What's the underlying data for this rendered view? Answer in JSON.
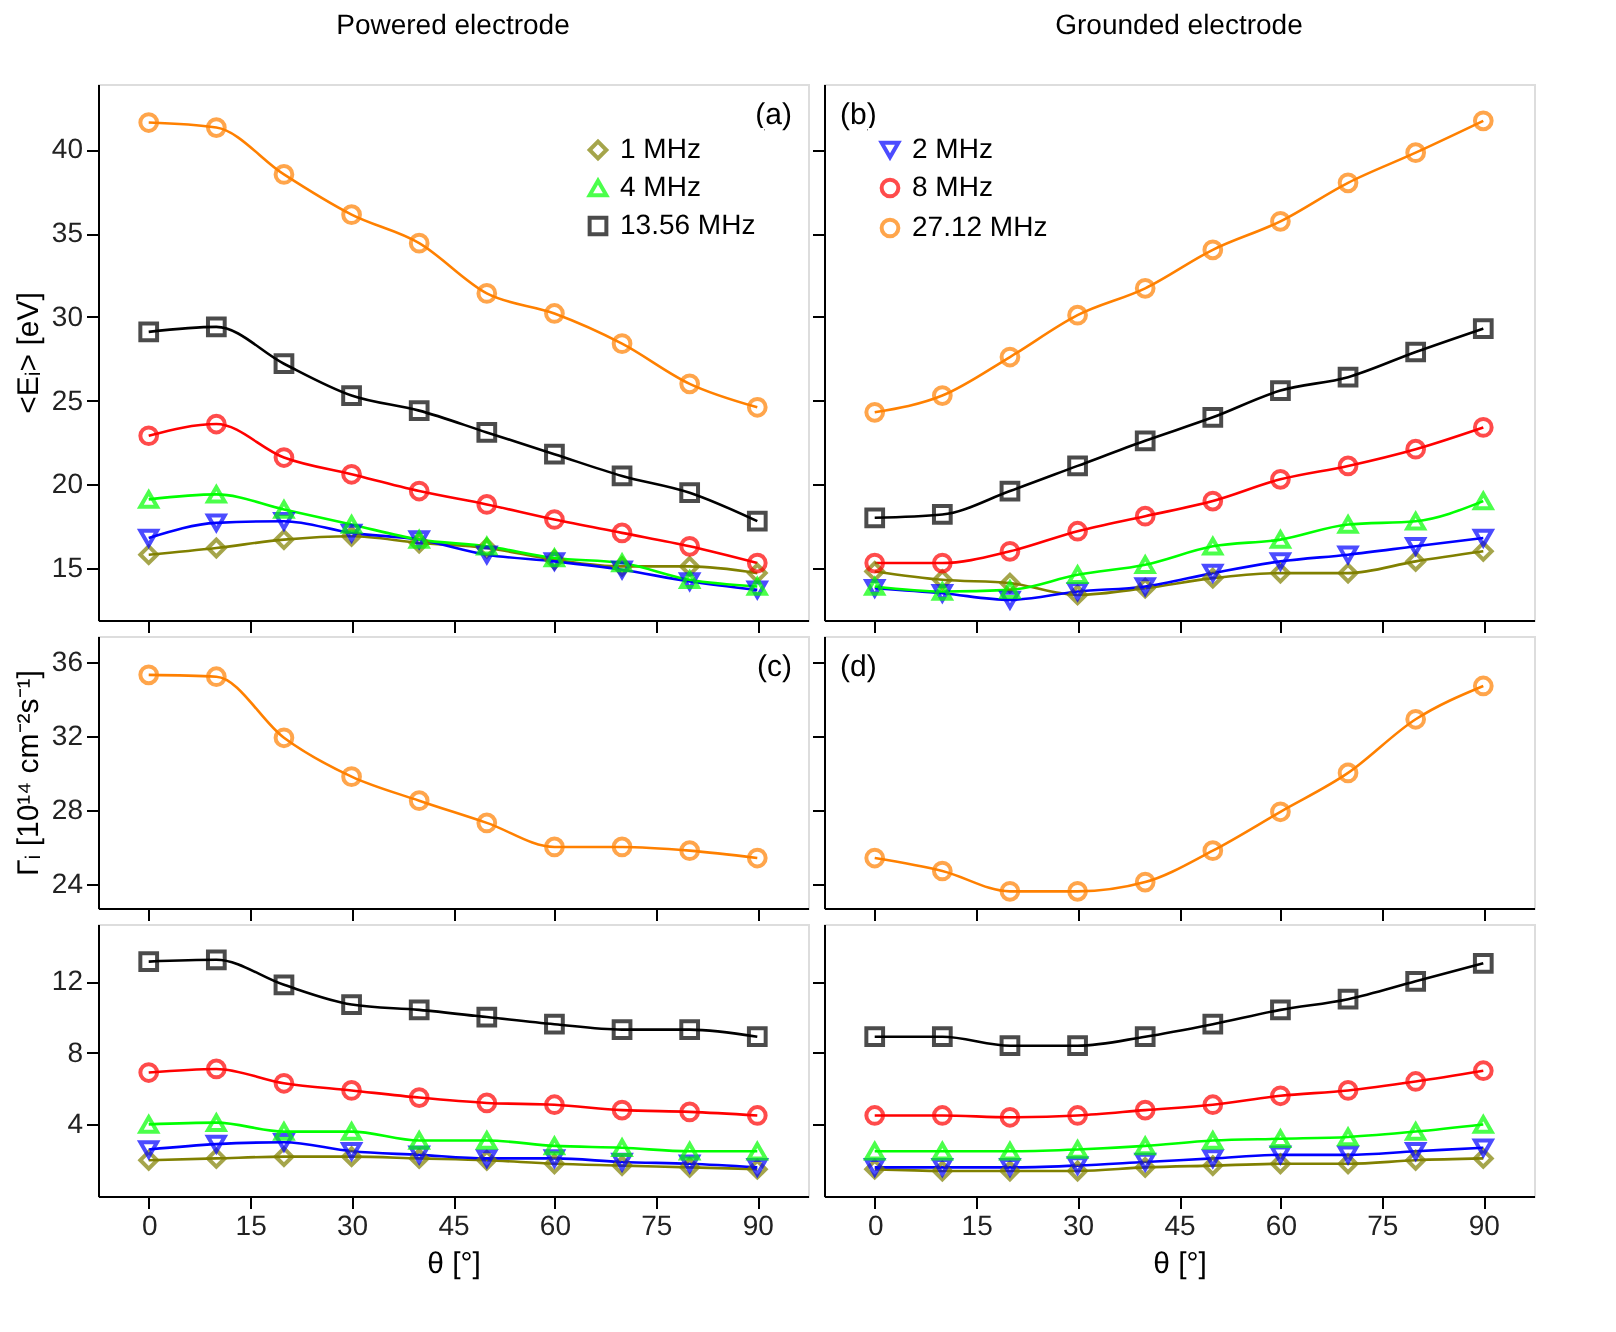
{
  "chart_data": [
    {
      "type": "line",
      "title": "Powered electrode",
      "ylabel": "<Eᵢ> [eV]",
      "annotations": [
        "(a)"
      ],
      "x": [
        0,
        10,
        20,
        30,
        40,
        50,
        60,
        70,
        80,
        90
      ],
      "xlim": [
        -7.5,
        97.5
      ],
      "xticks": [
        0,
        15,
        30,
        45,
        60,
        75,
        90
      ],
      "ylim": [
        11.9,
        43.9
      ],
      "yticks": [
        15,
        20,
        25,
        30,
        35,
        40
      ],
      "tick_labels": "y",
      "legend": "top right",
      "series": [
        {
          "name": "1 MHz",
          "color": "#808000",
          "marker": "diamond",
          "values": [
            15.8,
            16.2,
            16.7,
            16.9,
            16.5,
            16.2,
            15.5,
            15.1,
            15.1,
            14.7
          ]
        },
        {
          "color": "#0000ff",
          "marker": "triangle-down",
          "values": [
            16.8,
            17.7,
            17.8,
            17.1,
            16.7,
            15.8,
            15.4,
            14.9,
            14.2,
            13.7
          ]
        },
        {
          "name": "4 MHz",
          "color": "#00ff00",
          "marker": "triangle",
          "values": [
            19.1,
            19.4,
            18.5,
            17.6,
            16.7,
            16.3,
            15.6,
            15.3,
            14.3,
            13.9
          ]
        },
        {
          "color": "#ff0000",
          "marker": "circle",
          "values": [
            22.9,
            23.6,
            21.6,
            20.6,
            19.6,
            18.8,
            17.9,
            17.1,
            16.3,
            15.3
          ]
        },
        {
          "name": "13.56 MHz",
          "color": "#000000",
          "marker": "square",
          "values": [
            29.1,
            29.4,
            27.2,
            25.3,
            24.4,
            23.1,
            21.8,
            20.5,
            19.5,
            17.8
          ]
        },
        {
          "color": "#ff8000",
          "marker": "circle",
          "values": [
            41.6,
            41.3,
            38.5,
            36.1,
            34.4,
            31.4,
            30.2,
            28.4,
            26.0,
            24.6
          ]
        }
      ]
    },
    {
      "type": "line",
      "title": "Grounded electrode",
      "annotations": [
        "(b)"
      ],
      "x": [
        0,
        10,
        20,
        30,
        40,
        50,
        60,
        70,
        80,
        90
      ],
      "xlim": [
        -7.5,
        97.5
      ],
      "xticks": [
        0,
        15,
        30,
        45,
        60,
        75,
        90
      ],
      "ylim": [
        11.9,
        43.9
      ],
      "yticks": [
        15,
        20,
        25,
        30,
        35,
        40
      ],
      "tick_labels": false,
      "legend": "top left",
      "series": [
        {
          "color": "#808000",
          "marker": "diamond",
          "values": [
            14.8,
            14.3,
            14.1,
            13.4,
            13.8,
            14.4,
            14.7,
            14.7,
            15.4,
            16.0
          ]
        },
        {
          "name": "2 MHz",
          "color": "#0000ff",
          "marker": "triangle-down",
          "values": [
            13.8,
            13.5,
            13.1,
            13.6,
            13.9,
            14.7,
            15.4,
            15.8,
            16.3,
            16.8
          ]
        },
        {
          "color": "#00ff00",
          "marker": "triangle",
          "values": [
            13.9,
            13.6,
            13.7,
            14.6,
            15.2,
            16.3,
            16.7,
            17.6,
            17.8,
            19.0
          ]
        },
        {
          "name": "8 MHz",
          "color": "#ff0000",
          "marker": "circle",
          "values": [
            15.3,
            15.3,
            16.0,
            17.2,
            18.1,
            19.0,
            20.3,
            21.1,
            22.1,
            23.4
          ]
        },
        {
          "color": "#000000",
          "marker": "square",
          "values": [
            18.0,
            18.2,
            19.6,
            21.1,
            22.6,
            24.0,
            25.6,
            26.4,
            27.9,
            29.3
          ]
        },
        {
          "name": "27.12 MHz",
          "color": "#ff8000",
          "marker": "circle",
          "values": [
            24.3,
            25.3,
            27.6,
            30.1,
            31.7,
            34.0,
            35.7,
            38.0,
            39.8,
            41.7
          ]
        }
      ]
    },
    {
      "type": "line",
      "ylabel": "Γᵢ [10¹⁴ cm⁻²s⁻¹]",
      "annotations": [
        "(c)"
      ],
      "x": [
        0,
        10,
        20,
        30,
        40,
        50,
        60,
        70,
        80,
        90
      ],
      "xlim": [
        -7.5,
        97.5
      ],
      "xticks": [
        0,
        15,
        30,
        45,
        60,
        75,
        90
      ],
      "ylim": [
        22.7,
        37.4
      ],
      "yticks": [
        24,
        28,
        32,
        36
      ],
      "tick_labels": "y",
      "series": [
        {
          "color": "#ff8000",
          "marker": "circle",
          "values": [
            35.3,
            35.2,
            31.9,
            29.8,
            28.5,
            27.3,
            26.0,
            26.0,
            25.8,
            25.4
          ]
        }
      ]
    },
    {
      "type": "line",
      "xlabel": "θ [°]",
      "x": [
        0,
        10,
        20,
        30,
        40,
        50,
        60,
        70,
        80,
        90
      ],
      "xlim": [
        -7.5,
        97.5
      ],
      "xticks": [
        0,
        15,
        30,
        45,
        60,
        75,
        90
      ],
      "ylim": [
        0,
        15.2
      ],
      "yticks": [
        4,
        8,
        12
      ],
      "series": [
        {
          "color": "#808000",
          "marker": "diamond",
          "values": [
            2.0,
            2.1,
            2.2,
            2.2,
            2.1,
            2.0,
            1.8,
            1.7,
            1.6,
            1.5
          ]
        },
        {
          "color": "#0000ff",
          "marker": "triangle-down",
          "values": [
            2.6,
            2.9,
            3.0,
            2.5,
            2.3,
            2.1,
            2.1,
            1.9,
            1.8,
            1.6
          ]
        },
        {
          "color": "#00ff00",
          "marker": "triangle",
          "values": [
            4.0,
            4.1,
            3.6,
            3.6,
            3.1,
            3.1,
            2.8,
            2.7,
            2.5,
            2.5
          ]
        },
        {
          "color": "#ff0000",
          "marker": "circle",
          "values": [
            6.9,
            7.1,
            6.3,
            5.9,
            5.5,
            5.2,
            5.1,
            4.8,
            4.7,
            4.5
          ]
        },
        {
          "color": "#000000",
          "marker": "square",
          "values": [
            13.1,
            13.2,
            11.8,
            10.7,
            10.4,
            10.0,
            9.6,
            9.3,
            9.3,
            8.9
          ]
        }
      ]
    },
    {
      "type": "line",
      "annotations": [
        "(d)"
      ],
      "x": [
        0,
        10,
        20,
        30,
        40,
        50,
        60,
        70,
        80,
        90
      ],
      "xlim": [
        -7.5,
        97.5
      ],
      "xticks": [
        0,
        15,
        30,
        45,
        60,
        75,
        90
      ],
      "ylim": [
        22.7,
        37.4
      ],
      "yticks": [
        24,
        28,
        32,
        36
      ],
      "tick_labels": false,
      "series": [
        {
          "color": "#ff8000",
          "marker": "circle",
          "values": [
            25.4,
            24.7,
            23.6,
            23.6,
            24.1,
            25.8,
            27.9,
            30.0,
            32.9,
            34.7
          ]
        }
      ]
    },
    {
      "type": "line",
      "xlabel": "θ [°]",
      "x": [
        0,
        10,
        20,
        30,
        40,
        50,
        60,
        70,
        80,
        90
      ],
      "xlim": [
        -7.5,
        97.5
      ],
      "xticks": [
        0,
        15,
        30,
        45,
        60,
        75,
        90
      ],
      "ylim": [
        0,
        15.2
      ],
      "yticks": [
        4,
        8,
        12
      ],
      "tick_labels": "x",
      "series": [
        {
          "color": "#808000",
          "marker": "diamond",
          "values": [
            1.5,
            1.4,
            1.4,
            1.4,
            1.6,
            1.7,
            1.8,
            1.8,
            2.0,
            2.1
          ]
        },
        {
          "color": "#0000ff",
          "marker": "triangle-down",
          "values": [
            1.6,
            1.6,
            1.6,
            1.7,
            1.9,
            2.1,
            2.3,
            2.3,
            2.5,
            2.7
          ]
        },
        {
          "color": "#00ff00",
          "marker": "triangle",
          "values": [
            2.5,
            2.5,
            2.5,
            2.6,
            2.8,
            3.1,
            3.2,
            3.3,
            3.6,
            4.0
          ]
        },
        {
          "color": "#ff0000",
          "marker": "circle",
          "values": [
            4.5,
            4.5,
            4.4,
            4.5,
            4.8,
            5.1,
            5.6,
            5.9,
            6.4,
            7.0
          ]
        },
        {
          "color": "#000000",
          "marker": "square",
          "values": [
            8.9,
            8.9,
            8.4,
            8.4,
            8.9,
            9.6,
            10.4,
            11.0,
            12.0,
            13.0
          ]
        }
      ]
    }
  ]
}
